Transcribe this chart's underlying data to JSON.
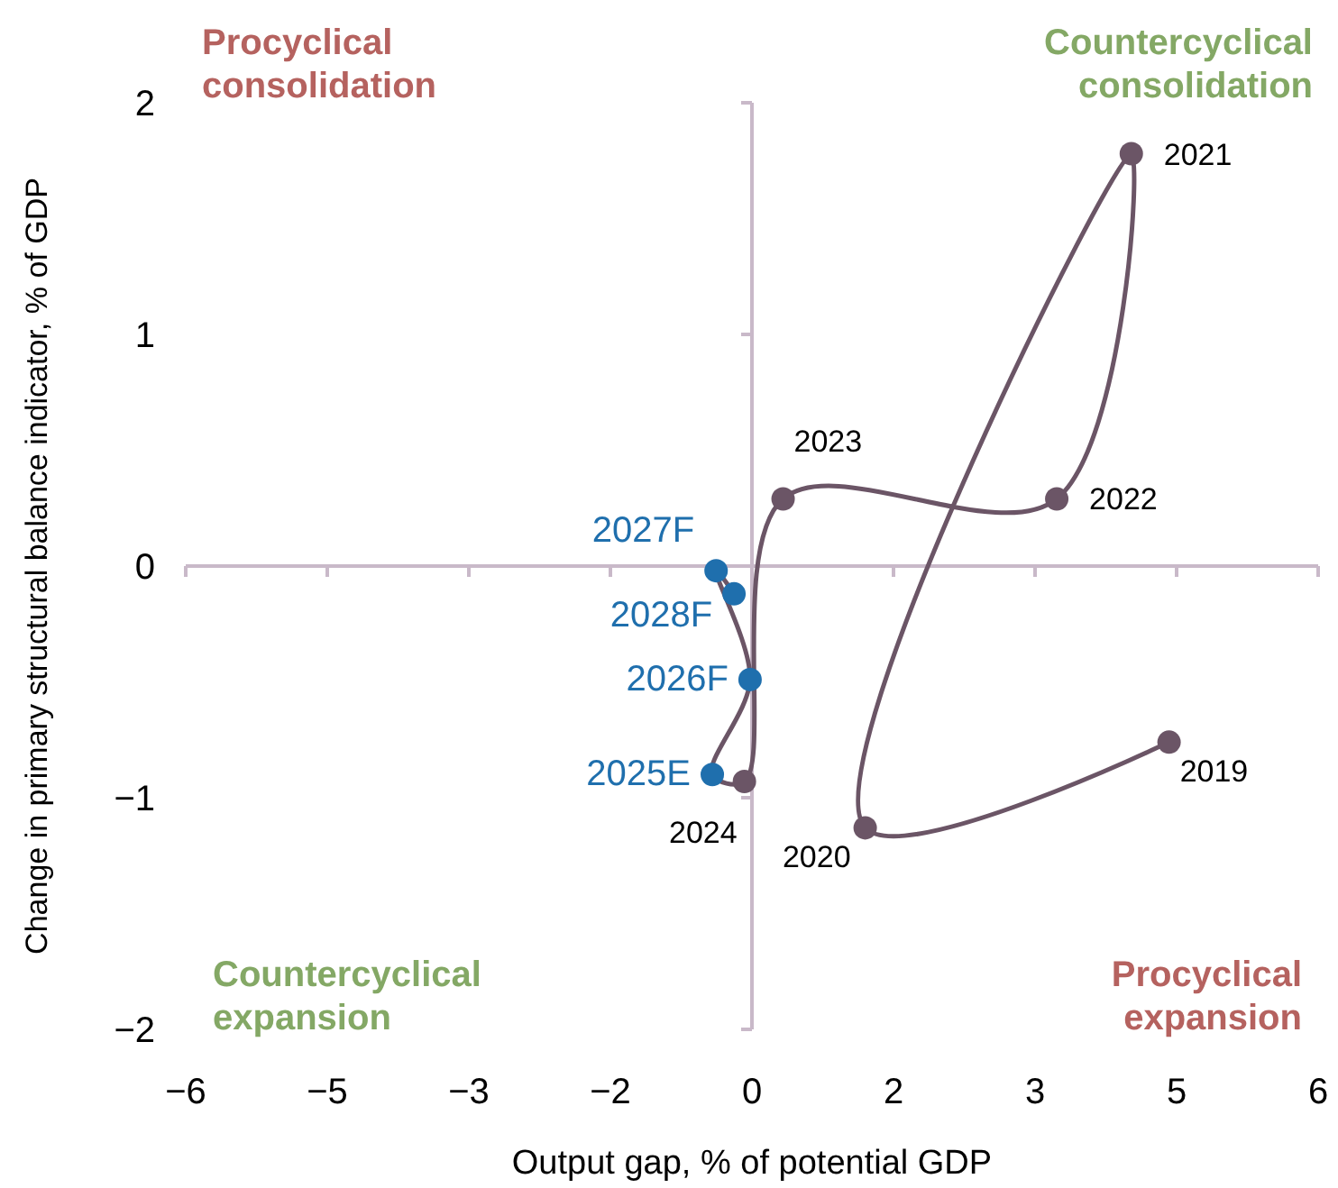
{
  "chart_data": {
    "type": "scatter",
    "xlabel": "Output gap, % of potential GDP",
    "ylabel": "Change in primary structural balance indicator, % of GDP",
    "xlim": [
      -6,
      6
    ],
    "xticks": [
      -6,
      {
        "value": -4.5,
        "label": "−5"
      },
      -3,
      {
        "value": -1.5,
        "label": "−2"
      },
      0,
      {
        "value": 1.5,
        "label": "2"
      },
      3,
      {
        "value": 4.5,
        "label": "5"
      },
      6
    ],
    "ylim": [
      -2,
      2
    ],
    "yticks": [
      -2,
      -1,
      0,
      1,
      2
    ],
    "marker": "circle",
    "series": [
      {
        "type": "line",
        "marker": "none",
        "line_style": "solid",
        "color": "#6b5566",
        "x": [
          4.42,
          1.2,
          4.02,
          3.23,
          0.33,
          -0.08,
          -0.42,
          -0.02,
          -0.38,
          -0.19
        ],
        "values": [
          -0.76,
          -1.13,
          1.78,
          0.29,
          0.29,
          -0.93,
          -0.9,
          -0.49,
          -0.02,
          -0.12
        ]
      },
      {
        "name": "2019",
        "color": "#6b5566",
        "x": [
          4.42
        ],
        "values": [
          -0.76
        ]
      },
      {
        "name": "2020",
        "color": "#6b5566",
        "x": [
          1.2
        ],
        "values": [
          -1.13
        ]
      },
      {
        "name": "2021",
        "color": "#6b5566",
        "x": [
          4.02
        ],
        "values": [
          1.78
        ]
      },
      {
        "name": "2022",
        "color": "#6b5566",
        "x": [
          3.23
        ],
        "values": [
          0.29
        ]
      },
      {
        "name": "2023",
        "color": "#6b5566",
        "x": [
          0.33
        ],
        "values": [
          0.29
        ]
      },
      {
        "name": "2024",
        "color": "#6b5566",
        "x": [
          -0.08
        ],
        "values": [
          -0.93
        ]
      },
      {
        "name": "2025E",
        "color": "#1f6fad",
        "x": [
          -0.42
        ],
        "values": [
          -0.9
        ]
      },
      {
        "name": "2026F",
        "color": "#1f6fad",
        "x": [
          -0.02
        ],
        "values": [
          -0.49
        ]
      },
      {
        "name": "2027F",
        "color": "#1f6fad",
        "x": [
          -0.38
        ],
        "values": [
          -0.02
        ]
      },
      {
        "name": "2028F",
        "color": "#1f6fad",
        "x": [
          -0.19
        ],
        "values": [
          -0.12
        ]
      }
    ],
    "annotations": [
      "Procyclical consolidation",
      "Countercyclical consolidation",
      "Countercyclical expansion",
      "Procyclical expansion"
    ]
  }
}
